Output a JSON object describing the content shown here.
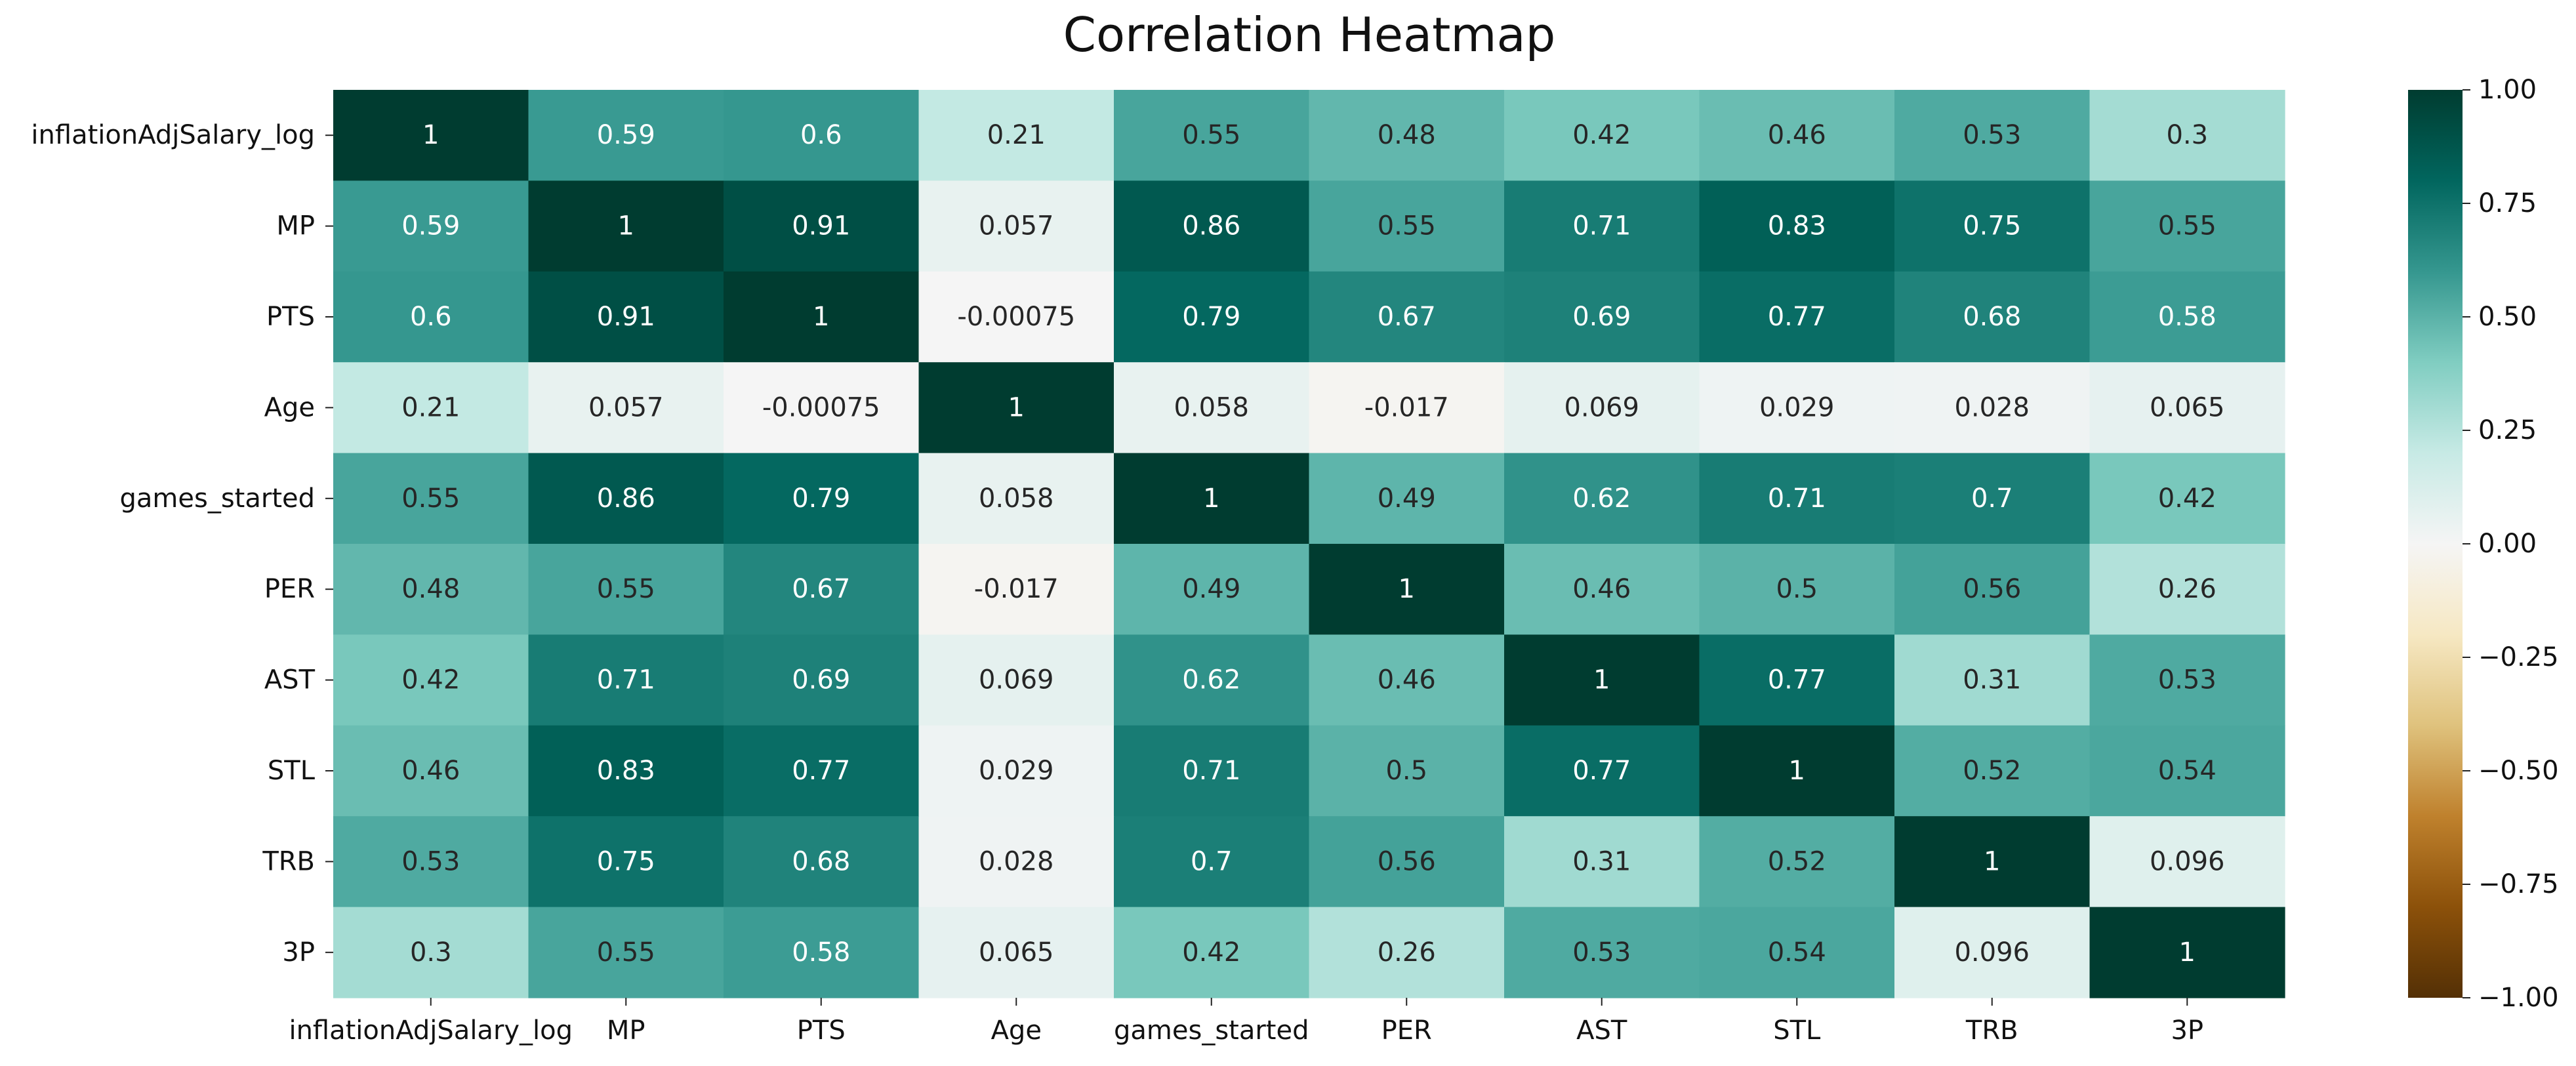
{
  "chart_data": {
    "type": "heatmap",
    "title": "Correlation Heatmap",
    "xlabel": "",
    "ylabel": "",
    "rows": [
      "inflationAdjSalary_log",
      "MP",
      "PTS",
      "Age",
      "games_started",
      "PER",
      "AST",
      "STL",
      "TRB",
      "3P"
    ],
    "columns": [
      "inflationAdjSalary_log",
      "MP",
      "PTS",
      "Age",
      "games_started",
      "PER",
      "AST",
      "STL",
      "TRB",
      "3P"
    ],
    "values": [
      [
        1,
        0.59,
        0.6,
        0.21,
        0.55,
        0.48,
        0.42,
        0.46,
        0.53,
        0.3
      ],
      [
        0.59,
        1,
        0.91,
        0.057,
        0.86,
        0.55,
        0.71,
        0.83,
        0.75,
        0.55
      ],
      [
        0.6,
        0.91,
        1,
        -0.00075,
        0.79,
        0.67,
        0.69,
        0.77,
        0.68,
        0.58
      ],
      [
        0.21,
        0.057,
        -0.00075,
        1,
        0.058,
        -0.017,
        0.069,
        0.029,
        0.028,
        0.065
      ],
      [
        0.55,
        0.86,
        0.79,
        0.058,
        1,
        0.49,
        0.62,
        0.71,
        0.7,
        0.42
      ],
      [
        0.48,
        0.55,
        0.67,
        -0.017,
        0.49,
        1,
        0.46,
        0.5,
        0.56,
        0.26
      ],
      [
        0.42,
        0.71,
        0.69,
        0.069,
        0.62,
        0.46,
        1,
        0.77,
        0.31,
        0.53
      ],
      [
        0.46,
        0.83,
        0.77,
        0.029,
        0.71,
        0.5,
        0.77,
        1,
        0.52,
        0.54
      ],
      [
        0.53,
        0.75,
        0.68,
        0.028,
        0.7,
        0.56,
        0.31,
        0.52,
        1,
        0.096
      ],
      [
        0.3,
        0.55,
        0.58,
        0.065,
        0.42,
        0.26,
        0.53,
        0.54,
        0.096,
        1
      ]
    ],
    "colorbar": {
      "range": [
        -1,
        1
      ],
      "ticks": [
        "1.00",
        "0.75",
        "0.50",
        "0.25",
        "0.00",
        "−0.25",
        "−0.50",
        "−0.75",
        "−1.00"
      ],
      "tick_values": [
        1,
        0.75,
        0.5,
        0.25,
        0,
        -0.25,
        -0.5,
        -0.75,
        -1
      ]
    },
    "colormap": "BrBG",
    "colormap_stops": [
      "#543005",
      "#8c510a",
      "#bf812d",
      "#dfc27d",
      "#f6e8c3",
      "#f5f5f5",
      "#c7eae5",
      "#80cdc1",
      "#35978f",
      "#01665e",
      "#003c30"
    ]
  }
}
